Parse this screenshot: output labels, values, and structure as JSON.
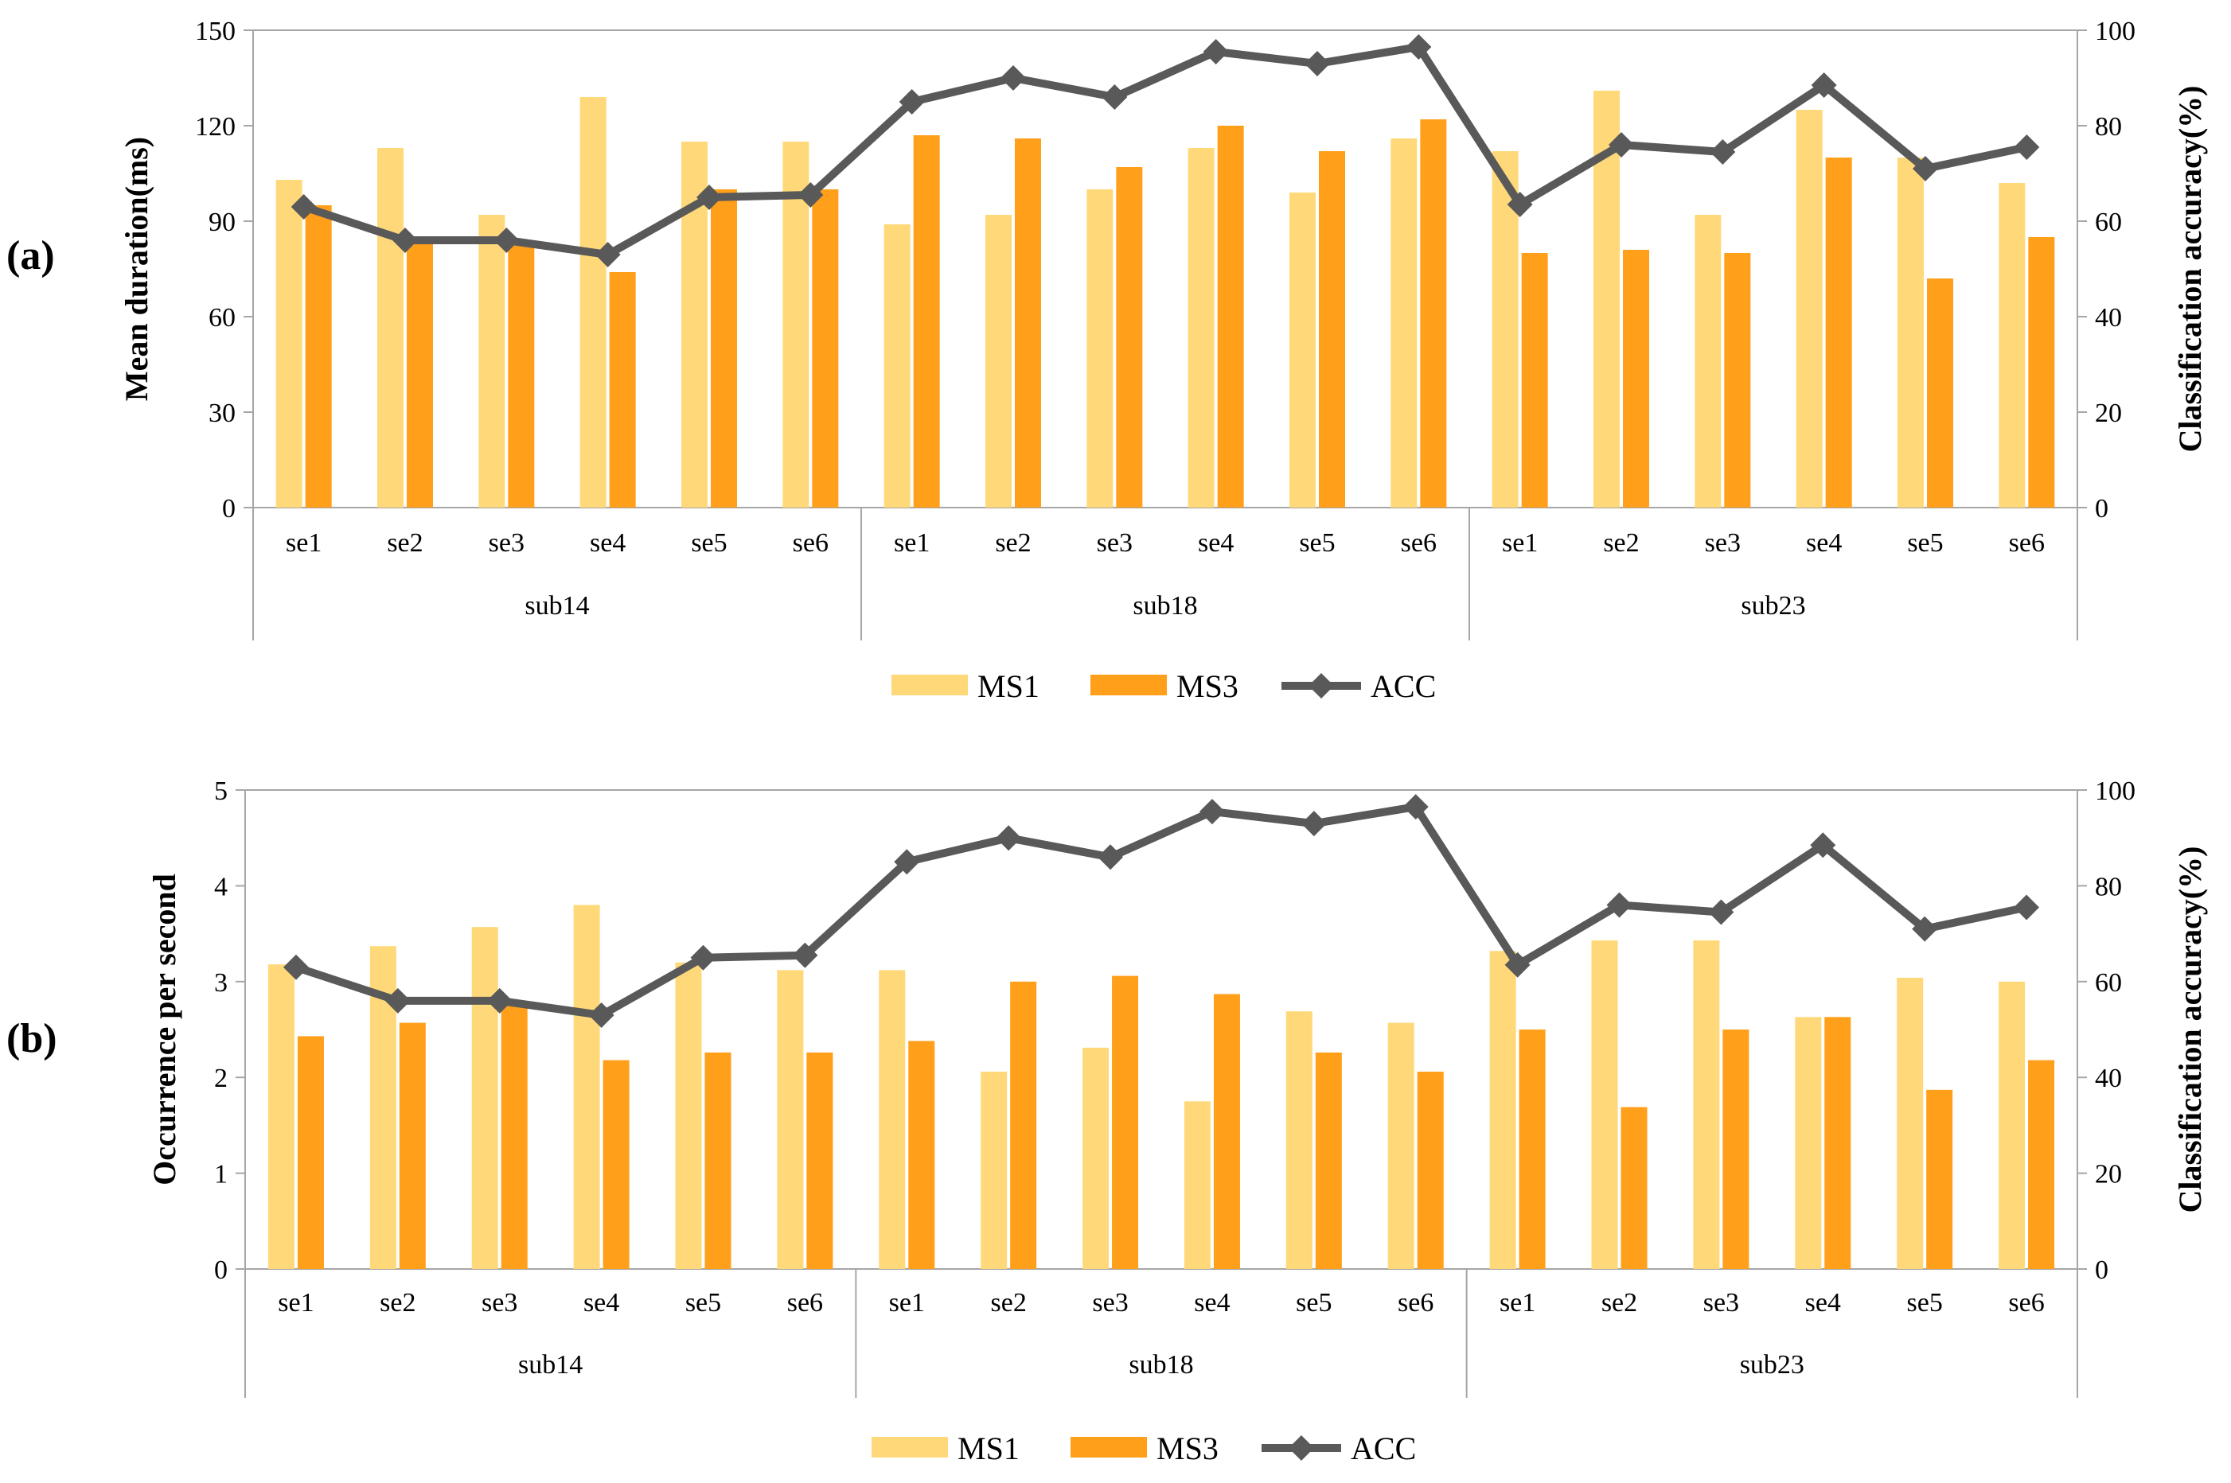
{
  "colors": {
    "ms1": "#FFD979",
    "ms3": "#FF9F1A",
    "acc": "#595959",
    "axis": "#A6A6A6",
    "text": "#000000"
  },
  "legend": {
    "ms1": "MS1",
    "ms3": "MS3",
    "acc": "ACC"
  },
  "chart_data": [
    {
      "type": "bar",
      "panel_label": "(a)",
      "ylabel": "Mean duration(ms)",
      "y2label": "Classification accuracy(%)",
      "ylim": [
        0,
        150
      ],
      "yticks": [
        0,
        30,
        60,
        90,
        120,
        150
      ],
      "y2lim": [
        0,
        100
      ],
      "y2ticks": [
        0,
        20,
        40,
        60,
        80,
        100
      ],
      "grid": false,
      "legend_position": "bottom",
      "groups": [
        {
          "name": "sub14",
          "categories": [
            "se1",
            "se2",
            "se3",
            "se4",
            "se5",
            "se6"
          ]
        },
        {
          "name": "sub18",
          "categories": [
            "se1",
            "se2",
            "se3",
            "se4",
            "se5",
            "se6"
          ]
        },
        {
          "name": "sub23",
          "categories": [
            "se1",
            "se2",
            "se3",
            "se4",
            "se5",
            "se6"
          ]
        }
      ],
      "series": [
        {
          "name": "MS1",
          "type": "bar",
          "axis": "left",
          "values": [
            103,
            113,
            92,
            129,
            115,
            115,
            89,
            92,
            100,
            113,
            99,
            116,
            112,
            131,
            92,
            125,
            110,
            102
          ]
        },
        {
          "name": "MS3",
          "type": "bar",
          "axis": "left",
          "values": [
            95,
            84,
            84,
            74,
            100,
            100,
            117,
            116,
            107,
            120,
            112,
            122,
            80,
            81,
            80,
            110,
            72,
            85
          ]
        },
        {
          "name": "ACC",
          "type": "line",
          "axis": "right",
          "values": [
            63,
            56,
            56,
            53,
            65,
            65.5,
            85,
            90,
            86,
            95.5,
            93,
            96.5,
            63.5,
            76,
            74.5,
            88.5,
            71,
            75.5
          ]
        }
      ]
    },
    {
      "type": "bar",
      "panel_label": "(b)",
      "ylabel": "Occurrence per second",
      "y2label": "Classification accuracy(%)",
      "ylim": [
        0,
        5
      ],
      "yticks": [
        0,
        1,
        2,
        3,
        4,
        5
      ],
      "y2lim": [
        0,
        100
      ],
      "y2ticks": [
        0,
        20,
        40,
        60,
        80,
        100
      ],
      "grid": false,
      "legend_position": "bottom",
      "groups": [
        {
          "name": "sub14",
          "categories": [
            "se1",
            "se2",
            "se3",
            "se4",
            "se5",
            "se6"
          ]
        },
        {
          "name": "sub18",
          "categories": [
            "se1",
            "se2",
            "se3",
            "se4",
            "se5",
            "se6"
          ]
        },
        {
          "name": "sub23",
          "categories": [
            "se1",
            "se2",
            "se3",
            "se4",
            "se5",
            "se6"
          ]
        }
      ],
      "series": [
        {
          "name": "MS1",
          "type": "bar",
          "axis": "left",
          "values": [
            3.18,
            3.37,
            3.57,
            3.8,
            3.2,
            3.12,
            3.12,
            2.06,
            2.31,
            1.75,
            2.69,
            2.57,
            3.32,
            3.43,
            3.43,
            2.63,
            3.04,
            3.0
          ]
        },
        {
          "name": "MS3",
          "type": "bar",
          "axis": "left",
          "values": [
            2.43,
            2.57,
            2.75,
            2.18,
            2.26,
            2.26,
            2.38,
            3.0,
            3.06,
            2.87,
            2.26,
            2.06,
            2.5,
            1.69,
            2.5,
            2.63,
            1.87,
            2.18
          ]
        },
        {
          "name": "ACC",
          "type": "line",
          "axis": "right",
          "values": [
            63,
            56,
            56,
            53,
            65,
            65.5,
            85,
            90,
            86,
            95.5,
            93,
            96.5,
            63.5,
            76,
            74.5,
            88.5,
            71,
            75.5
          ]
        }
      ]
    }
  ]
}
